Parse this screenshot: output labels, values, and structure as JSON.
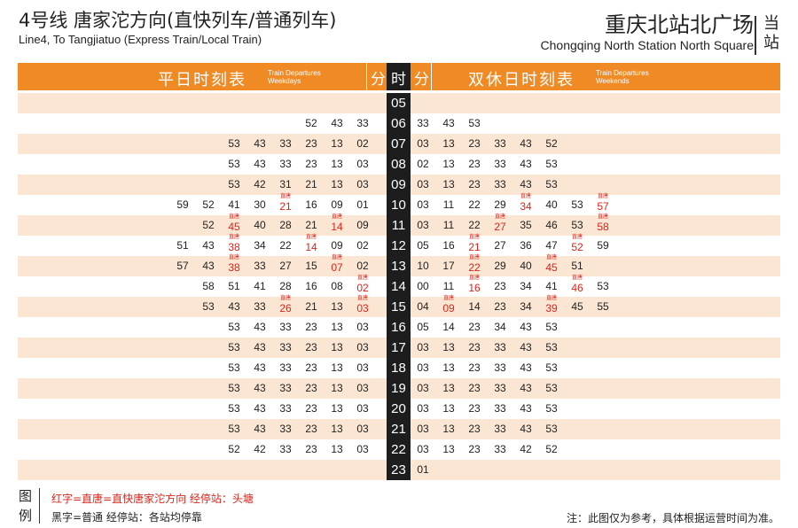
{
  "header": {
    "title_cn": "4号线 唐家沱方向(直快列车/普通列车)",
    "title_en": "Line4, To Tangjiatuo (Express Train/Local Train)",
    "station_cn": "重庆北站北广场",
    "station_en": "Chongqing North Station North Square",
    "side_label": "当站"
  },
  "table_header": {
    "weekday_cn": "平日时刻表",
    "weekday_en_1": "Train Departures",
    "weekday_en_2": "Weekdays",
    "min_label": "分",
    "hour_label": "时",
    "weekend_cn": "双休日时刻表",
    "weekend_en_1": "Train Departures",
    "weekend_en_2": "Weekends"
  },
  "express_tag": "直唐",
  "rows": [
    {
      "hour": "05",
      "weekday": [],
      "weekend": []
    },
    {
      "hour": "06",
      "weekday": [
        {
          "m": "52"
        },
        {
          "m": "43"
        },
        {
          "m": "33"
        }
      ],
      "weekend": [
        {
          "m": "33"
        },
        {
          "m": "43"
        },
        {
          "m": "53"
        }
      ]
    },
    {
      "hour": "07",
      "weekday": [
        {
          "m": "53"
        },
        {
          "m": "43"
        },
        {
          "m": "33"
        },
        {
          "m": "23"
        },
        {
          "m": "13"
        },
        {
          "m": "02"
        }
      ],
      "weekend": [
        {
          "m": "03"
        },
        {
          "m": "13"
        },
        {
          "m": "23"
        },
        {
          "m": "33"
        },
        {
          "m": "43"
        },
        {
          "m": "52"
        }
      ]
    },
    {
      "hour": "08",
      "weekday": [
        {
          "m": "53"
        },
        {
          "m": "43"
        },
        {
          "m": "33"
        },
        {
          "m": "23"
        },
        {
          "m": "13"
        },
        {
          "m": "03"
        }
      ],
      "weekend": [
        {
          "m": "02"
        },
        {
          "m": "13"
        },
        {
          "m": "23"
        },
        {
          "m": "33"
        },
        {
          "m": "43"
        },
        {
          "m": "53"
        }
      ]
    },
    {
      "hour": "09",
      "weekday": [
        {
          "m": "53"
        },
        {
          "m": "42"
        },
        {
          "m": "31"
        },
        {
          "m": "21"
        },
        {
          "m": "13"
        },
        {
          "m": "03"
        }
      ],
      "weekend": [
        {
          "m": "03"
        },
        {
          "m": "13"
        },
        {
          "m": "23"
        },
        {
          "m": "33"
        },
        {
          "m": "43"
        },
        {
          "m": "53"
        }
      ]
    },
    {
      "hour": "10",
      "weekday": [
        {
          "m": "59"
        },
        {
          "m": "52"
        },
        {
          "m": "41"
        },
        {
          "m": "30"
        },
        {
          "m": "21",
          "e": true
        },
        {
          "m": "16"
        },
        {
          "m": "09"
        },
        {
          "m": "01"
        }
      ],
      "weekend": [
        {
          "m": "03"
        },
        {
          "m": "11"
        },
        {
          "m": "22"
        },
        {
          "m": "29"
        },
        {
          "m": "34",
          "e": true
        },
        {
          "m": "40"
        },
        {
          "m": "53"
        },
        {
          "m": "57",
          "e": true
        }
      ]
    },
    {
      "hour": "11",
      "weekday": [
        {
          "m": "52"
        },
        {
          "m": "45",
          "e": true
        },
        {
          "m": "40"
        },
        {
          "m": "28"
        },
        {
          "m": "21"
        },
        {
          "m": "14",
          "e": true
        },
        {
          "m": "09"
        }
      ],
      "weekend": [
        {
          "m": "03"
        },
        {
          "m": "11"
        },
        {
          "m": "22"
        },
        {
          "m": "27",
          "e": true
        },
        {
          "m": "35"
        },
        {
          "m": "46"
        },
        {
          "m": "53"
        },
        {
          "m": "58",
          "e": true
        }
      ]
    },
    {
      "hour": "12",
      "weekday": [
        {
          "m": "51"
        },
        {
          "m": "43"
        },
        {
          "m": "38",
          "e": true
        },
        {
          "m": "34"
        },
        {
          "m": "22"
        },
        {
          "m": "14",
          "e": true
        },
        {
          "m": "09"
        },
        {
          "m": "02"
        }
      ],
      "weekend": [
        {
          "m": "05"
        },
        {
          "m": "16"
        },
        {
          "m": "21",
          "e": true
        },
        {
          "m": "27"
        },
        {
          "m": "36"
        },
        {
          "m": "47"
        },
        {
          "m": "52",
          "e": true
        },
        {
          "m": "59"
        }
      ]
    },
    {
      "hour": "13",
      "weekday": [
        {
          "m": "57"
        },
        {
          "m": "43"
        },
        {
          "m": "38",
          "e": true
        },
        {
          "m": "33"
        },
        {
          "m": "27"
        },
        {
          "m": "15"
        },
        {
          "m": "07",
          "e": true
        },
        {
          "m": "02"
        }
      ],
      "weekend": [
        {
          "m": "10"
        },
        {
          "m": "17"
        },
        {
          "m": "22",
          "e": true
        },
        {
          "m": "29"
        },
        {
          "m": "40"
        },
        {
          "m": "45",
          "e": true
        },
        {
          "m": "51"
        }
      ]
    },
    {
      "hour": "14",
      "weekday": [
        {
          "m": "58"
        },
        {
          "m": "51"
        },
        {
          "m": "41"
        },
        {
          "m": "28"
        },
        {
          "m": "16"
        },
        {
          "m": "08"
        },
        {
          "m": "02",
          "e": true
        }
      ],
      "weekend": [
        {
          "m": "00"
        },
        {
          "m": "11"
        },
        {
          "m": "16",
          "e": true
        },
        {
          "m": "23"
        },
        {
          "m": "34"
        },
        {
          "m": "41"
        },
        {
          "m": "46",
          "e": true
        },
        {
          "m": "53"
        }
      ]
    },
    {
      "hour": "15",
      "weekday": [
        {
          "m": "53"
        },
        {
          "m": "43"
        },
        {
          "m": "33"
        },
        {
          "m": "26",
          "e": true
        },
        {
          "m": "21"
        },
        {
          "m": "13"
        },
        {
          "m": "03",
          "e": true
        }
      ],
      "weekend": [
        {
          "m": "04"
        },
        {
          "m": "09",
          "e": true
        },
        {
          "m": "14"
        },
        {
          "m": "23"
        },
        {
          "m": "34"
        },
        {
          "m": "39",
          "e": true
        },
        {
          "m": "45"
        },
        {
          "m": "55"
        }
      ]
    },
    {
      "hour": "16",
      "weekday": [
        {
          "m": "53"
        },
        {
          "m": "43"
        },
        {
          "m": "33"
        },
        {
          "m": "23"
        },
        {
          "m": "13"
        },
        {
          "m": "03"
        }
      ],
      "weekend": [
        {
          "m": "05"
        },
        {
          "m": "14"
        },
        {
          "m": "23"
        },
        {
          "m": "34"
        },
        {
          "m": "43"
        },
        {
          "m": "53"
        }
      ]
    },
    {
      "hour": "17",
      "weekday": [
        {
          "m": "53"
        },
        {
          "m": "43"
        },
        {
          "m": "33"
        },
        {
          "m": "23"
        },
        {
          "m": "13"
        },
        {
          "m": "03"
        }
      ],
      "weekend": [
        {
          "m": "03"
        },
        {
          "m": "13"
        },
        {
          "m": "23"
        },
        {
          "m": "33"
        },
        {
          "m": "43"
        },
        {
          "m": "53"
        }
      ]
    },
    {
      "hour": "18",
      "weekday": [
        {
          "m": "53"
        },
        {
          "m": "43"
        },
        {
          "m": "33"
        },
        {
          "m": "23"
        },
        {
          "m": "13"
        },
        {
          "m": "03"
        }
      ],
      "weekend": [
        {
          "m": "03"
        },
        {
          "m": "13"
        },
        {
          "m": "23"
        },
        {
          "m": "33"
        },
        {
          "m": "43"
        },
        {
          "m": "53"
        }
      ]
    },
    {
      "hour": "19",
      "weekday": [
        {
          "m": "53"
        },
        {
          "m": "43"
        },
        {
          "m": "33"
        },
        {
          "m": "23"
        },
        {
          "m": "13"
        },
        {
          "m": "03"
        }
      ],
      "weekend": [
        {
          "m": "03"
        },
        {
          "m": "13"
        },
        {
          "m": "23"
        },
        {
          "m": "33"
        },
        {
          "m": "43"
        },
        {
          "m": "53"
        }
      ]
    },
    {
      "hour": "20",
      "weekday": [
        {
          "m": "53"
        },
        {
          "m": "43"
        },
        {
          "m": "33"
        },
        {
          "m": "23"
        },
        {
          "m": "13"
        },
        {
          "m": "03"
        }
      ],
      "weekend": [
        {
          "m": "03"
        },
        {
          "m": "13"
        },
        {
          "m": "23"
        },
        {
          "m": "33"
        },
        {
          "m": "43"
        },
        {
          "m": "53"
        }
      ]
    },
    {
      "hour": "21",
      "weekday": [
        {
          "m": "53"
        },
        {
          "m": "43"
        },
        {
          "m": "33"
        },
        {
          "m": "23"
        },
        {
          "m": "13"
        },
        {
          "m": "03"
        }
      ],
      "weekend": [
        {
          "m": "03"
        },
        {
          "m": "13"
        },
        {
          "m": "23"
        },
        {
          "m": "33"
        },
        {
          "m": "43"
        },
        {
          "m": "53"
        }
      ]
    },
    {
      "hour": "22",
      "weekday": [
        {
          "m": "52"
        },
        {
          "m": "42"
        },
        {
          "m": "33"
        },
        {
          "m": "23"
        },
        {
          "m": "13"
        },
        {
          "m": "03"
        }
      ],
      "weekend": [
        {
          "m": "03"
        },
        {
          "m": "13"
        },
        {
          "m": "23"
        },
        {
          "m": "33"
        },
        {
          "m": "42"
        },
        {
          "m": "52"
        }
      ]
    },
    {
      "hour": "23",
      "weekday": [],
      "weekend": [
        {
          "m": "01"
        }
      ]
    }
  ],
  "legend": {
    "title": "图例",
    "red": "红字=直唐=直快唐家沱方向 经停站：头塘",
    "black": "黑字=普通 经停站：各站均停靠"
  },
  "note": "注：此图仅为参考，具体根据运营时间为准。",
  "colors": {
    "header_orange": "#f08a24",
    "row_alt": "#fbe6d3",
    "hour_col": "#1d1d1d",
    "express_red": "#d9261c"
  }
}
